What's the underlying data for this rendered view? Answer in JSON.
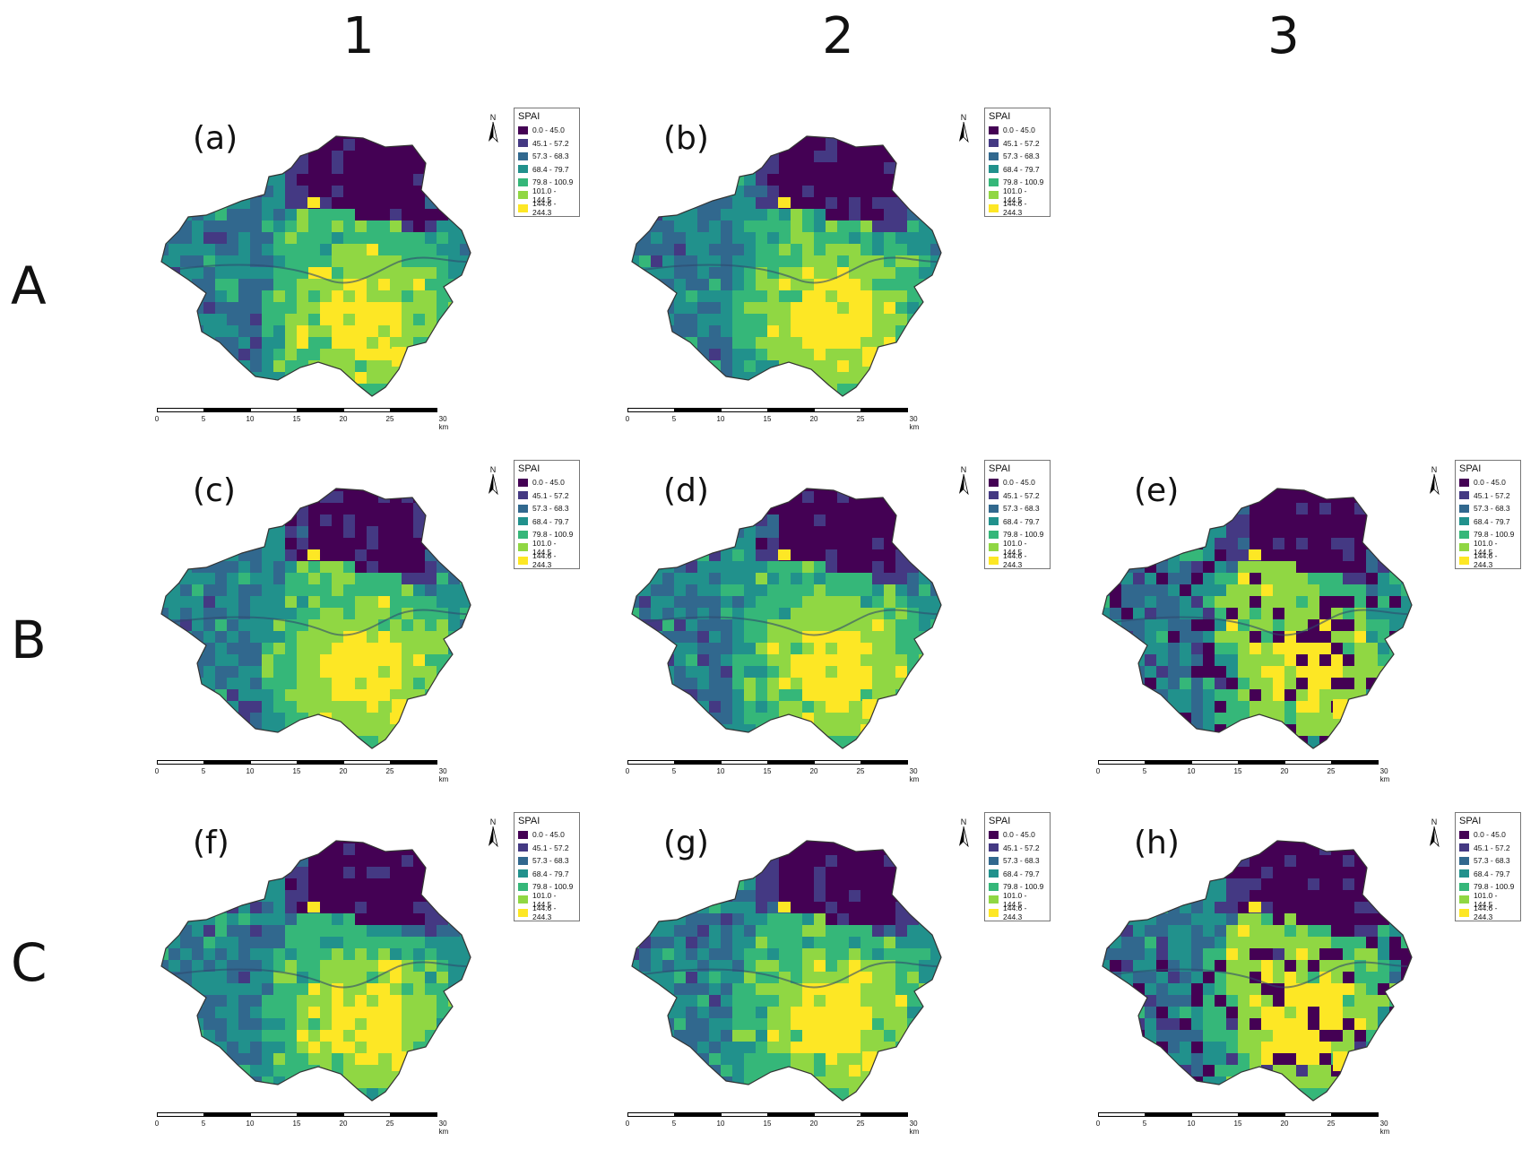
{
  "columns": [
    "1",
    "2",
    "3"
  ],
  "rows": [
    "A",
    "B",
    "C"
  ],
  "legend": {
    "title": "SPAI",
    "classes": [
      {
        "label": "0.0 - 45.0",
        "color": "#440154"
      },
      {
        "label": "45.1 - 57.2",
        "color": "#443983"
      },
      {
        "label": "57.3 - 68.3",
        "color": "#31688e"
      },
      {
        "label": "68.4 - 79.7",
        "color": "#21918c"
      },
      {
        "label": "79.8 - 100.9",
        "color": "#35b779"
      },
      {
        "label": "101.0 - 144.5",
        "color": "#90d743"
      },
      {
        "label": "144.6 - 244.3",
        "color": "#fde725"
      }
    ]
  },
  "north_label": "N",
  "scale_ticks": [
    "0",
    "5",
    "10",
    "15",
    "20",
    "25",
    "30 km"
  ],
  "panels": [
    {
      "tag": "(a)",
      "row": 0,
      "col": 0
    },
    {
      "tag": "(b)",
      "row": 0,
      "col": 1
    },
    {
      "tag": "(c)",
      "row": 1,
      "col": 0
    },
    {
      "tag": "(d)",
      "row": 1,
      "col": 1
    },
    {
      "tag": "(e)",
      "row": 1,
      "col": 2
    },
    {
      "tag": "(f)",
      "row": 2,
      "col": 0
    },
    {
      "tag": "(g)",
      "row": 2,
      "col": 1
    },
    {
      "tag": "(h)",
      "row": 2,
      "col": 2
    }
  ]
}
